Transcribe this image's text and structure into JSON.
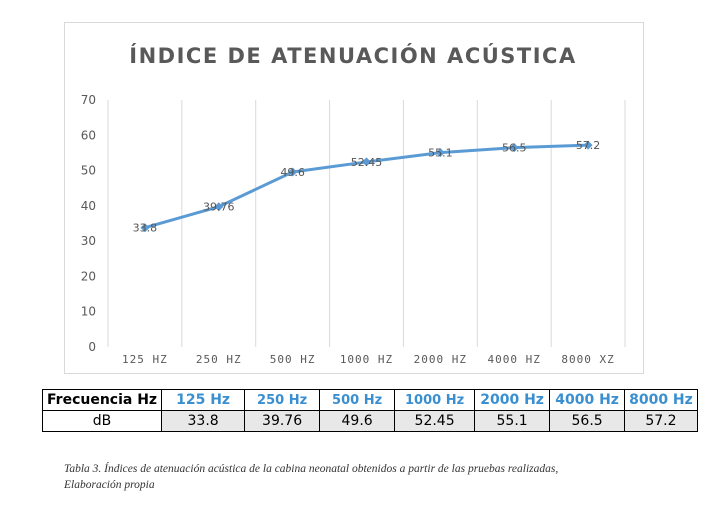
{
  "chart_data": {
    "type": "line",
    "title": "ÍNDICE DE ATENUACIÓN ACÚSTICA",
    "categories": [
      "125 HZ",
      "250 HZ",
      "500 HZ",
      "1000 HZ",
      "2000 HZ",
      "4000 HZ",
      "8000 XZ"
    ],
    "series": [
      {
        "values": [
          33.8,
          39.76,
          49.6,
          52.45,
          55.1,
          56.5,
          57.2
        ],
        "labels": [
          "33.8",
          "39.76",
          "49.6",
          "52.45",
          "55.1",
          "56.5",
          "57.2"
        ],
        "color": "#5b9bd5"
      }
    ],
    "yticks": [
      "0",
      "10",
      "20",
      "30",
      "40",
      "50",
      "60",
      "70"
    ],
    "ylim": [
      0,
      70
    ],
    "grid": "vertical",
    "legend": "none"
  },
  "table": {
    "header_label": "Frecuencia Hz",
    "frequencies": [
      "125 Hz",
      "250 Hz",
      "500 Hz",
      "1000 Hz",
      "2000 Hz",
      "4000 Hz",
      "8000 Hz"
    ],
    "row_label": "dB",
    "values": [
      "33.8",
      "39.76",
      "49.6",
      "52.45",
      "55.1",
      "56.5",
      "57.2"
    ],
    "freq_color": "#3a8fd0"
  },
  "caption": {
    "line1": "Tabla 3. Índices de atenuación acústica de la cabina neonatal obtenidos a partir de las pruebas realizadas,",
    "line2": "Elaboración  propia"
  }
}
